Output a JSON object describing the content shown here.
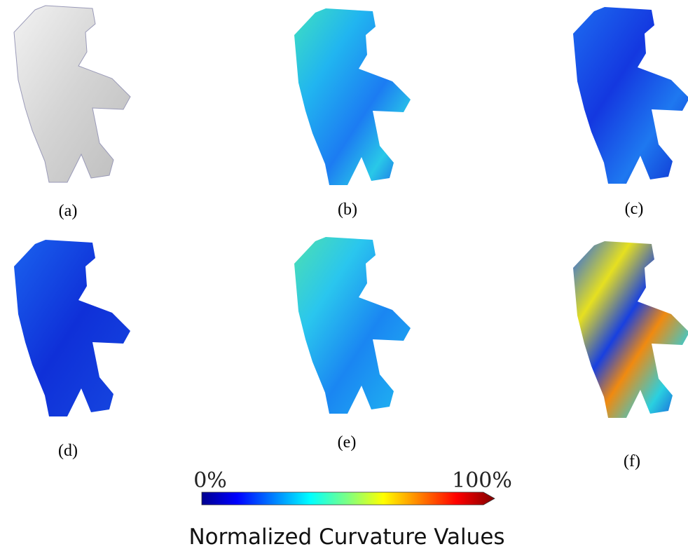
{
  "panels": [
    {
      "label": "(a)"
    },
    {
      "label": "(b)"
    },
    {
      "label": "(c)"
    },
    {
      "label": "(d)"
    },
    {
      "label": "(e)"
    },
    {
      "label": "(f)"
    }
  ],
  "colorbar": {
    "min_label": "0%",
    "max_label": "100%",
    "title": "Normalized Curvature Values"
  }
}
